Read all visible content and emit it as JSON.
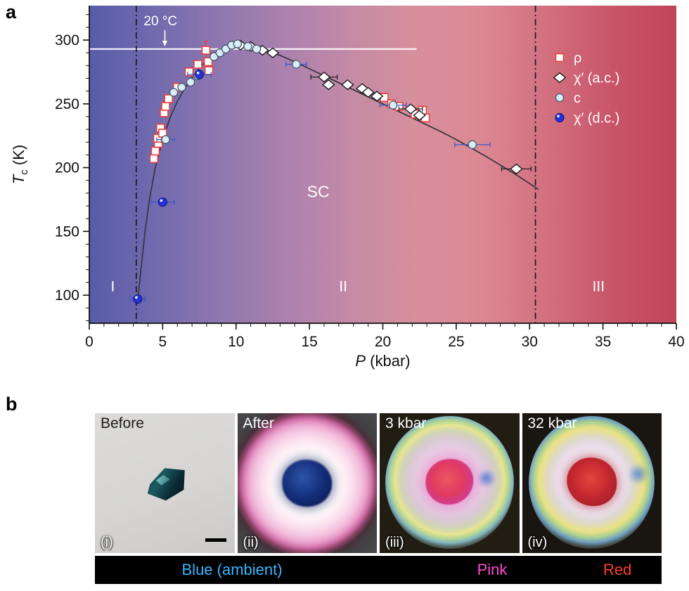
{
  "figure": {
    "panel_a_label": "a",
    "panel_b_label": "b"
  },
  "chart_data": {
    "type": "scatter",
    "title": "",
    "xlabel": {
      "var": "P",
      "unit": "(kbar)"
    },
    "ylabel": {
      "var": "T",
      "sub": "c",
      "unit": "(K)"
    },
    "xlim": [
      0,
      40
    ],
    "ylim": [
      78,
      327
    ],
    "xticks": [
      0,
      5,
      10,
      15,
      20,
      25,
      30,
      35,
      40
    ],
    "yticks": [
      100,
      150,
      200,
      250,
      300
    ],
    "x_minor_step": 1,
    "y_minor_step": 10,
    "grid": "off",
    "legend_position": "upper right",
    "background_gradient": [
      "#585CA8",
      "#716AAE",
      "#8F77B0",
      "#AB81AE",
      "#C48AA6",
      "#D78F9D",
      "#DC8894",
      "#D2707F",
      "#C95569",
      "#C2455A"
    ],
    "isotherm": {
      "label": "20 °C",
      "temperature": 293,
      "x_start": 0,
      "x_end": 22.3,
      "label_p": 4.85,
      "arrow_p": 5.15
    },
    "dividers": [
      3.2,
      30.4
    ],
    "region_labels": [
      {
        "text": "I",
        "p": 1.6,
        "t": 103,
        "size": 21
      },
      {
        "text": "II",
        "p": 17.3,
        "t": 103,
        "size": 21
      },
      {
        "text": "III",
        "p": 34.7,
        "t": 103,
        "size": 21
      },
      {
        "text": "SC",
        "p": 15.6,
        "t": 177,
        "size": 23
      }
    ],
    "curve": [
      [
        3.3,
        95
      ],
      [
        3.5,
        118
      ],
      [
        3.8,
        150
      ],
      [
        4.1,
        175
      ],
      [
        4.5,
        200
      ],
      [
        5.0,
        222
      ],
      [
        5.5,
        239
      ],
      [
        6.0,
        252
      ],
      [
        6.5,
        262
      ],
      [
        7.0,
        271
      ],
      [
        7.5,
        278
      ],
      [
        8.0,
        284
      ],
      [
        8.5,
        289
      ],
      [
        9.0,
        292.5
      ],
      [
        9.5,
        295
      ],
      [
        10.0,
        296.3
      ],
      [
        10.5,
        296.6
      ],
      [
        11.0,
        295.8
      ],
      [
        11.5,
        294
      ],
      [
        12.0,
        292
      ],
      [
        13,
        288
      ],
      [
        14,
        283
      ],
      [
        15,
        277.5
      ],
      [
        16,
        272
      ],
      [
        17,
        266.5
      ],
      [
        18,
        261
      ],
      [
        19,
        255.5
      ],
      [
        20,
        250
      ],
      [
        21,
        244.5
      ],
      [
        22,
        239
      ],
      [
        23,
        233.5
      ],
      [
        24,
        228
      ],
      [
        25,
        222
      ],
      [
        26,
        215.5
      ],
      [
        27,
        209
      ],
      [
        28,
        202
      ],
      [
        29,
        195
      ],
      [
        30,
        187.5
      ],
      [
        30.6,
        183
      ]
    ],
    "series": [
      {
        "name": "ρ",
        "marker": "square",
        "stroke": "#e8403c",
        "fill": "#ffffff",
        "errcolor": "#e8403c",
        "points": [
          [
            4.4,
            207
          ],
          [
            4.5,
            213
          ],
          [
            4.7,
            219
          ],
          [
            4.65,
            223
          ],
          [
            4.85,
            231
          ],
          [
            5.0,
            227
          ],
          [
            5.1,
            243
          ],
          [
            5.2,
            248
          ],
          [
            5.4,
            254
          ],
          [
            6.0,
            263
          ],
          [
            6.8,
            275
          ],
          [
            7.4,
            281
          ],
          [
            7.95,
            292,
            0,
            7
          ],
          [
            8.1,
            283
          ],
          [
            8.15,
            276
          ],
          [
            20.1,
            255
          ],
          [
            20.6,
            250
          ],
          [
            21.1,
            248
          ],
          [
            22.2,
            242
          ],
          [
            22.7,
            245
          ],
          [
            22.9,
            239
          ]
        ]
      },
      {
        "name": "χ′ (a.c.)",
        "marker": "diamond",
        "stroke": "#1b1b1b",
        "fill": "#ffffff",
        "errcolor": "#222222",
        "points": [
          [
            10.3,
            296
          ],
          [
            11.0,
            295
          ],
          [
            11.8,
            292
          ],
          [
            12.5,
            290
          ],
          [
            16.0,
            271,
            0.9
          ],
          [
            16.3,
            265
          ],
          [
            17.6,
            265
          ],
          [
            18.6,
            262
          ],
          [
            19.0,
            259
          ],
          [
            19.6,
            256
          ],
          [
            21.9,
            246,
            0.8
          ],
          [
            22.5,
            241
          ],
          [
            29.1,
            199,
            1.0
          ]
        ]
      },
      {
        "name": "c",
        "marker": "circle",
        "stroke": "#4a5a6a",
        "fill": "#d8ecf9",
        "errcolor": "#3a57c9",
        "points": [
          [
            5.2,
            222,
            0.6
          ],
          [
            5.75,
            259
          ],
          [
            6.3,
            263
          ],
          [
            6.9,
            267
          ],
          [
            7.4,
            272
          ],
          [
            8.5,
            287
          ],
          [
            8.9,
            290
          ],
          [
            9.3,
            293
          ],
          [
            9.7,
            296
          ],
          [
            10.1,
            297
          ],
          [
            10.8,
            295
          ],
          [
            11.4,
            293
          ],
          [
            14.1,
            281,
            0.7
          ],
          [
            20.7,
            249,
            0.9
          ],
          [
            26.1,
            218,
            1.2
          ]
        ]
      },
      {
        "name": "χ′ (d.c.)",
        "marker": "dc-circle",
        "stroke": "#101a8a",
        "fill": "#2431d6",
        "errcolor": "#3a57c9",
        "points": [
          [
            3.3,
            97,
            0.5
          ],
          [
            5.0,
            173,
            0.8
          ],
          [
            7.5,
            273,
            0.8
          ]
        ]
      }
    ]
  },
  "panel_b": {
    "photos": [
      {
        "title": "Before",
        "index": "(i)"
      },
      {
        "title": "After",
        "index": "(ii)"
      },
      {
        "title": "3 kbar",
        "index": "(iii)"
      },
      {
        "title": "32 kbar",
        "index": "(iv)"
      }
    ],
    "color_bar": {
      "background": "#000000",
      "labels": [
        {
          "text": "Blue (ambient)",
          "color": "#35b6ff",
          "pos_percent": 24.2
        },
        {
          "text": "Pink",
          "color": "#ff49d3",
          "pos_percent": 70.1
        },
        {
          "text": "Red",
          "color": "#ff3b2e",
          "pos_percent": 92.2
        }
      ]
    }
  }
}
